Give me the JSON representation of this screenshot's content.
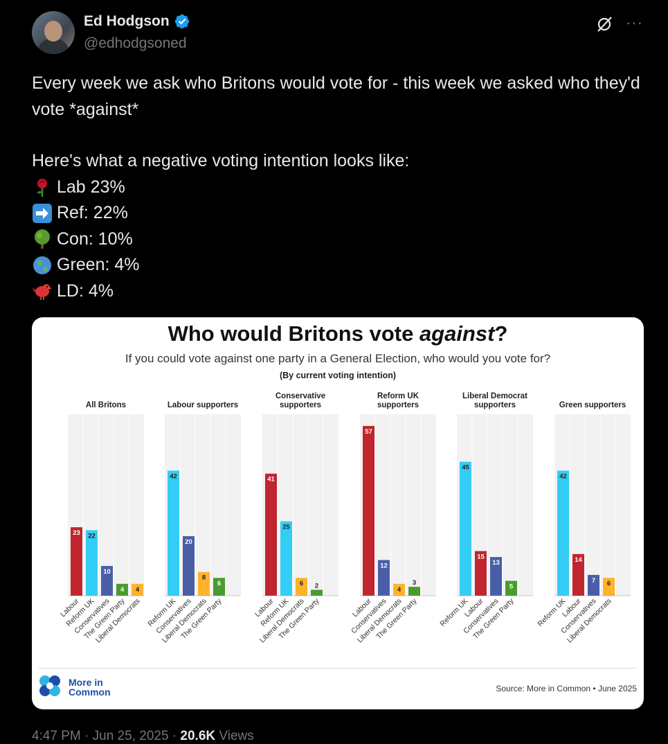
{
  "author": {
    "name": "Ed Hodgson",
    "handle": "@edhodgsoned"
  },
  "tweet": {
    "line1": "Every week we ask who Britons would vote for - this week we asked who they'd vote *against*",
    "line2": "Here's what a negative voting intention looks like:",
    "stats": [
      {
        "icon": "rose-emoji",
        "text": "Lab 23%"
      },
      {
        "icon": "right-arrow-emoji",
        "text": "Ref: 22%"
      },
      {
        "icon": "tree-emoji",
        "text": "Con: 10%"
      },
      {
        "icon": "globe-emoji",
        "text": "Green: 4%"
      },
      {
        "icon": "bird-emoji",
        "text": "LD: 4%"
      }
    ]
  },
  "card": {
    "title_main": "Who would Britons vote ",
    "title_italic": "against",
    "title_end": "?",
    "subtitle": "If you could vote against one party in a General Election, who would you vote for?",
    "subtitle2": "(By current voting intention)",
    "logo_line1": "More in",
    "logo_line2": "Common",
    "source": "Source: More in Common • June 2025"
  },
  "footer": {
    "time": "4:47 PM · Jun 25, 2025 · ",
    "views_count": "20.6K",
    "views_label": " Views"
  },
  "colors": {
    "Labour": "#c0262d",
    "Reform UK": "#34cdf5",
    "Conservatives": "#4a5ea8",
    "The Green Party": "#4a9a2e",
    "Liberal Democrats": "#ffb32a"
  },
  "chart_data": {
    "type": "bar",
    "ylim": [
      0,
      60
    ],
    "panels": [
      {
        "title": [
          "All Britons"
        ],
        "categories": [
          "Labour",
          "Reform UK",
          "Conservatives",
          "The Green Party",
          "Liberal Democrats"
        ],
        "values": [
          23,
          22,
          10,
          4,
          4
        ]
      },
      {
        "title": [
          "Labour supporters"
        ],
        "categories": [
          "Reform UK",
          "Conservatives",
          "Liberal Democrats",
          "The Green Party"
        ],
        "values": [
          42,
          20,
          8,
          6
        ]
      },
      {
        "title": [
          "Conservative",
          "supporters"
        ],
        "categories": [
          "Labour",
          "Reform UK",
          "Liberal Democrats",
          "The Green Party"
        ],
        "values": [
          41,
          25,
          6,
          2
        ]
      },
      {
        "title": [
          "Reform UK",
          "supporters"
        ],
        "categories": [
          "Labour",
          "Conservatives",
          "Liberal Democrats",
          "The Green Party"
        ],
        "values": [
          57,
          12,
          4,
          3
        ]
      },
      {
        "title": [
          "Liberal Democrat",
          "supporters"
        ],
        "categories": [
          "Reform UK",
          "Labour",
          "Conservatives",
          "The Green Party"
        ],
        "values": [
          45,
          15,
          13,
          5
        ]
      },
      {
        "title": [
          "Green supporters"
        ],
        "categories": [
          "Reform UK",
          "Labour",
          "Conservatives",
          "Liberal Democrats"
        ],
        "values": [
          42,
          14,
          7,
          6
        ]
      }
    ]
  }
}
